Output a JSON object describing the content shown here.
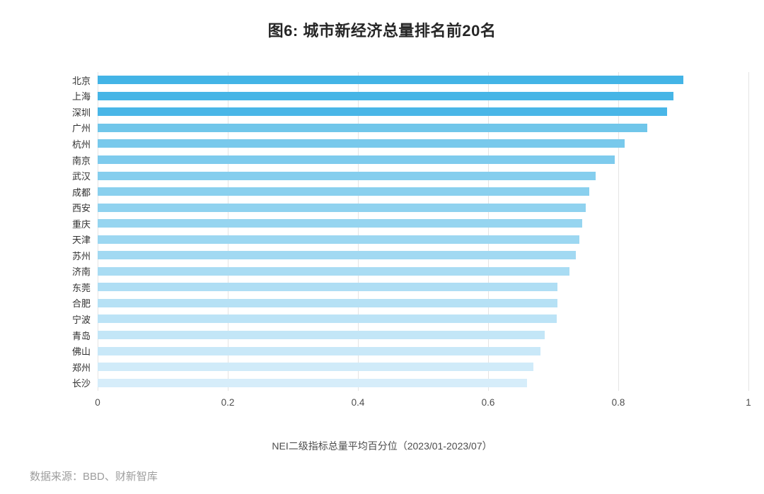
{
  "title": "图6: 城市新经济总量排名前20名",
  "source_note": "数据来源：BBD、财新智库",
  "chart_data": {
    "type": "bar",
    "orientation": "horizontal",
    "title": "图6: 城市新经济总量排名前20名",
    "xlabel": "NEI二级指标总量平均百分位（2023/01-2023/07）",
    "ylabel": "",
    "xlim": [
      0,
      1
    ],
    "grid": "vertical-gridlines-on",
    "legend": "none",
    "categories": [
      "北京",
      "上海",
      "深圳",
      "广州",
      "杭州",
      "南京",
      "武汉",
      "成都",
      "西安",
      "重庆",
      "天津",
      "苏州",
      "济南",
      "东莞",
      "合肥",
      "宁波",
      "青岛",
      "佛山",
      "郑州",
      "长沙"
    ],
    "values": [
      0.9,
      0.885,
      0.875,
      0.845,
      0.81,
      0.795,
      0.765,
      0.755,
      0.75,
      0.745,
      0.74,
      0.735,
      0.725,
      0.707,
      0.707,
      0.705,
      0.687,
      0.68,
      0.67,
      0.66
    ],
    "x_tick_positions": [
      0,
      0.2,
      0.4,
      0.6,
      0.8,
      1
    ],
    "x_tick_labels": [
      "0",
      "0.2",
      "0.4",
      "0.6",
      "0.8",
      "1"
    ],
    "bar_colors": [
      "#43b4e6",
      "#46b5e6",
      "#49b6e7",
      "#70c6ea",
      "#78c9ec",
      "#7ecbed",
      "#85ceee",
      "#8ad0ee",
      "#90d2ef",
      "#96d5f0",
      "#9cd7f1",
      "#a2d9f2",
      "#a9dcf3",
      "#afdef4",
      "#b6e1f5",
      "#bce3f6",
      "#c3e6f7",
      "#c9e8f8",
      "#d0ebf9",
      "#d6edfa"
    ],
    "gridline_color": "#e4e4e4"
  }
}
